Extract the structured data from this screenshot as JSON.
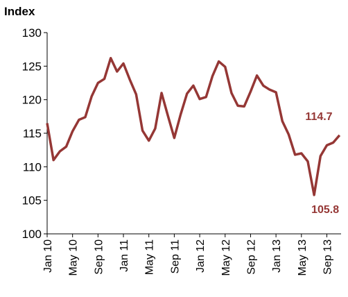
{
  "chart_data": {
    "type": "line",
    "y_label": "Index",
    "categories": [
      "Jan 10",
      null,
      null,
      null,
      "May 10",
      null,
      null,
      null,
      "Sep 10",
      null,
      null,
      null,
      "Jan 11",
      null,
      null,
      null,
      "May 11",
      null,
      null,
      null,
      "Sep 11",
      null,
      null,
      null,
      "Jan 12",
      null,
      null,
      null,
      "May 12",
      null,
      null,
      null,
      "Sep 12",
      null,
      null,
      null,
      "Jan 13",
      null,
      null,
      null,
      "May 13",
      null,
      null,
      null,
      "Sep 13",
      null,
      null
    ],
    "series": [
      {
        "name": "Index",
        "color": "#953735",
        "values": [
          116.5,
          111.0,
          112.3,
          113.0,
          115.3,
          117.0,
          117.4,
          120.5,
          122.5,
          123.1,
          126.2,
          124.2,
          125.4,
          123.0,
          120.8,
          115.4,
          113.9,
          115.7,
          121.0,
          117.6,
          114.3,
          117.8,
          120.9,
          122.1,
          120.1,
          120.4,
          123.5,
          125.7,
          124.9,
          121.0,
          119.1,
          119.0,
          121.2,
          123.6,
          122.1,
          121.5,
          121.1,
          116.8,
          114.8,
          111.8,
          112.0,
          110.8,
          105.8,
          111.6,
          113.2,
          113.6,
          114.7
        ],
        "value_labels": [
          null,
          null,
          null,
          null,
          null,
          null,
          null,
          null,
          null,
          null,
          null,
          null,
          null,
          null,
          null,
          null,
          null,
          null,
          null,
          null,
          null,
          null,
          null,
          null,
          null,
          null,
          null,
          null,
          null,
          null,
          null,
          null,
          null,
          null,
          null,
          null,
          null,
          null,
          null,
          null,
          null,
          null,
          "105.8",
          null,
          null,
          null,
          "114.7"
        ]
      }
    ],
    "ylim": [
      100,
      130
    ],
    "yticks": [
      100,
      105,
      110,
      115,
      120,
      125,
      130
    ],
    "grid": false
  }
}
